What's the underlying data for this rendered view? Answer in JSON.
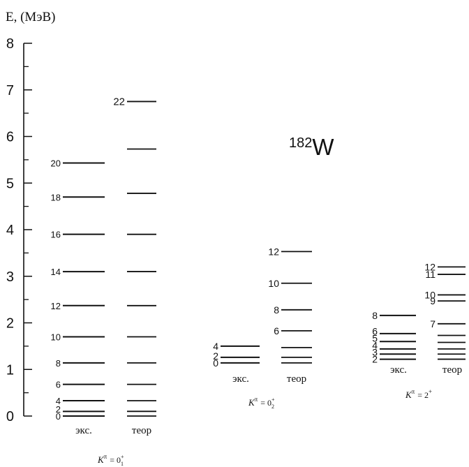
{
  "chart_data": {
    "type": "level-scheme",
    "nucleus": {
      "mass_number": "182",
      "symbol": "W"
    },
    "ylabel": "E, (МэВ)",
    "ylim": [
      0,
      8
    ],
    "yticks": [
      0,
      1,
      2,
      3,
      4,
      5,
      6,
      7,
      8
    ],
    "bands": [
      {
        "name": "K^π = 0_1^+",
        "k_label": {
          "K": "K",
          "pi": "π",
          "eq": "= 0",
          "sub": "1",
          "sup": "+"
        },
        "exp_label": "экс.",
        "theory_label": "теор",
        "experiment": [
          {
            "spin": "0",
            "energy": 0.0
          },
          {
            "spin": "2",
            "energy": 0.1
          },
          {
            "spin": "4",
            "energy": 0.33
          },
          {
            "spin": "6",
            "energy": 0.68
          },
          {
            "spin": "8",
            "energy": 1.14
          },
          {
            "spin": "10",
            "energy": 1.7
          },
          {
            "spin": "12",
            "energy": 2.37
          },
          {
            "spin": "14",
            "energy": 3.1
          },
          {
            "spin": "16",
            "energy": 3.9
          },
          {
            "spin": "18",
            "energy": 4.7
          },
          {
            "spin": "20",
            "energy": 5.43
          }
        ],
        "theory": [
          {
            "spin": "",
            "energy": 0.0
          },
          {
            "spin": "",
            "energy": 0.1
          },
          {
            "spin": "",
            "energy": 0.33
          },
          {
            "spin": "",
            "energy": 0.68
          },
          {
            "spin": "",
            "energy": 1.14
          },
          {
            "spin": "",
            "energy": 1.7
          },
          {
            "spin": "",
            "energy": 2.37
          },
          {
            "spin": "",
            "energy": 3.1
          },
          {
            "spin": "",
            "energy": 3.9
          },
          {
            "spin": "",
            "energy": 4.78
          },
          {
            "spin": "",
            "energy": 5.73
          },
          {
            "spin": "22",
            "energy": 6.75
          }
        ]
      },
      {
        "name": "K^π = 0_2^+",
        "k_label": {
          "K": "K",
          "pi": "π",
          "eq": "= 0",
          "sub": "2",
          "sup": "+"
        },
        "exp_label": "экс.",
        "theory_label": "теор",
        "experiment": [
          {
            "spin": "0",
            "energy": 1.14
          },
          {
            "spin": "2",
            "energy": 1.26
          },
          {
            "spin": "4",
            "energy": 1.5
          }
        ],
        "theory": [
          {
            "spin": "",
            "energy": 1.14
          },
          {
            "spin": "",
            "energy": 1.26
          },
          {
            "spin": "",
            "energy": 1.47
          },
          {
            "spin": "6",
            "energy": 1.83
          },
          {
            "spin": "8",
            "energy": 2.28
          },
          {
            "spin": "10",
            "energy": 2.85
          },
          {
            "spin": "12",
            "energy": 3.53
          }
        ]
      },
      {
        "name": "K^π = 2^+",
        "k_label": {
          "K": "K",
          "pi": "π",
          "eq": "= 2",
          "sub": "",
          "sup": "+"
        },
        "exp_label": "экс.",
        "theory_label": "теор",
        "experiment": [
          {
            "spin": "2",
            "energy": 1.22
          },
          {
            "spin": "3",
            "energy": 1.33
          },
          {
            "spin": "4",
            "energy": 1.44
          },
          {
            "spin": "5",
            "energy": 1.6
          },
          {
            "spin": "6",
            "energy": 1.77
          },
          {
            "spin": "8",
            "energy": 2.16
          }
        ],
        "theory": [
          {
            "spin": "",
            "energy": 1.22
          },
          {
            "spin": "",
            "energy": 1.33
          },
          {
            "spin": "",
            "energy": 1.44
          },
          {
            "spin": "",
            "energy": 1.58
          },
          {
            "spin": "",
            "energy": 1.73
          },
          {
            "spin": "7",
            "energy": 1.98
          },
          {
            "spin": "9",
            "energy": 2.47
          },
          {
            "spin": "10",
            "energy": 2.6
          },
          {
            "spin": "11",
            "energy": 3.04
          },
          {
            "spin": "12",
            "energy": 3.2
          }
        ]
      }
    ]
  }
}
